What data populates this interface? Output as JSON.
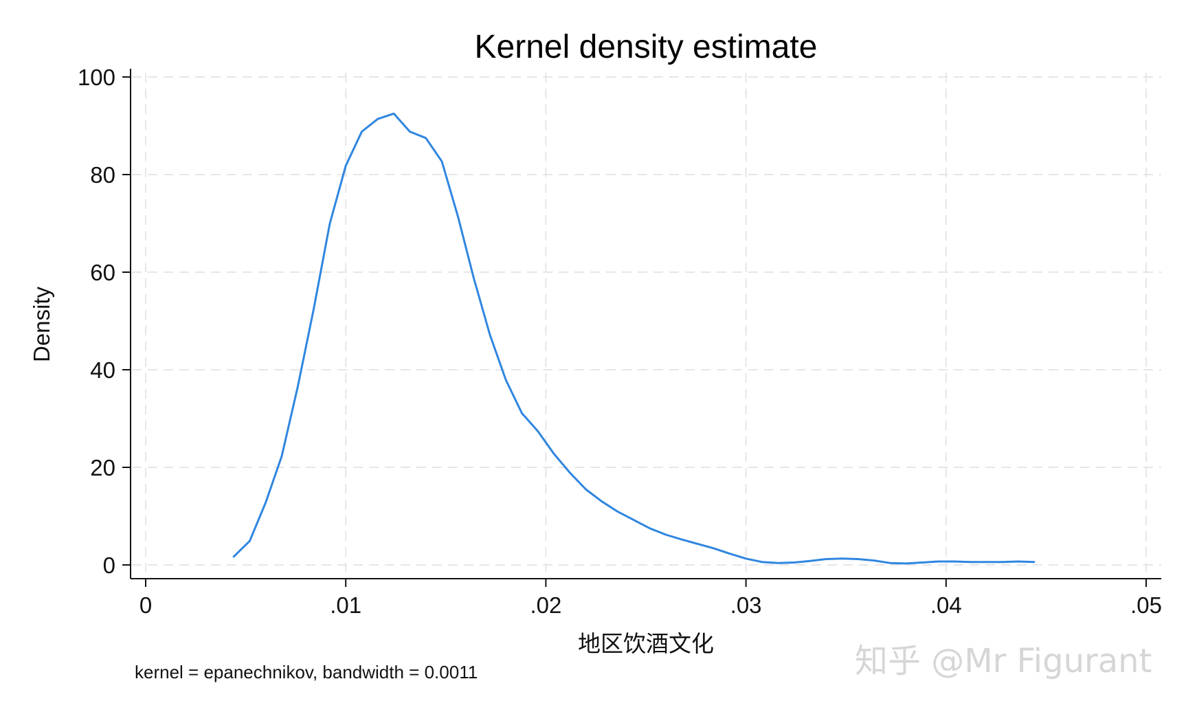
{
  "chart_data": {
    "type": "line",
    "title": "Kernel density estimate",
    "xlabel": "地区饮酒文化",
    "ylabel": "Density",
    "note": "kernel = epanechnikov, bandwidth = 0.0011",
    "xlim": [
      0,
      0.05
    ],
    "ylim": [
      0,
      100
    ],
    "x_ticks": [
      0,
      0.01,
      0.02,
      0.03,
      0.04,
      0.05
    ],
    "x_tick_labels": [
      "0",
      ".01",
      ".02",
      ".03",
      ".04",
      ".05"
    ],
    "y_ticks": [
      0,
      20,
      40,
      60,
      80,
      100
    ],
    "y_tick_labels": [
      "0",
      "20",
      "40",
      "60",
      "80",
      "100"
    ],
    "grid": true,
    "grid_style": "dashed",
    "line_color": "#2f86e0",
    "series": [
      {
        "x": [
          0.0044,
          0.0052,
          0.006,
          0.0068,
          0.0076,
          0.0084,
          0.0092,
          0.01,
          0.0108,
          0.0116,
          0.0124,
          0.0132,
          0.014,
          0.0148,
          0.0156,
          0.0164,
          0.0172,
          0.018,
          0.0188,
          0.0196,
          0.0204,
          0.0212,
          0.022,
          0.0228,
          0.0236,
          0.0244,
          0.0252,
          0.026,
          0.0268,
          0.0276,
          0.0284,
          0.0292,
          0.03,
          0.0308,
          0.0316,
          0.0324,
          0.0332,
          0.034,
          0.0348,
          0.0356,
          0.0364,
          0.0372,
          0.038,
          0.0388,
          0.0396,
          0.0404,
          0.0412,
          0.042,
          0.0428,
          0.0436,
          0.0444
        ],
        "y": [
          1.7,
          4.9,
          12.8,
          22.3,
          36.5,
          52.5,
          69.9,
          81.8,
          88.8,
          91.4,
          92.5,
          88.8,
          87.5,
          82.7,
          71.5,
          58.7,
          47.2,
          37.9,
          31.1,
          27.4,
          22.8,
          18.9,
          15.5,
          13.0,
          10.9,
          9.2,
          7.5,
          6.2,
          5.2,
          4.3,
          3.4,
          2.3,
          1.3,
          0.6,
          0.4,
          0.5,
          0.8,
          1.2,
          1.3,
          1.2,
          0.9,
          0.4,
          0.3,
          0.5,
          0.7,
          0.7,
          0.6,
          0.6,
          0.6,
          0.7,
          0.6
        ]
      }
    ]
  },
  "watermark": "知乎 @Mr Figurant"
}
